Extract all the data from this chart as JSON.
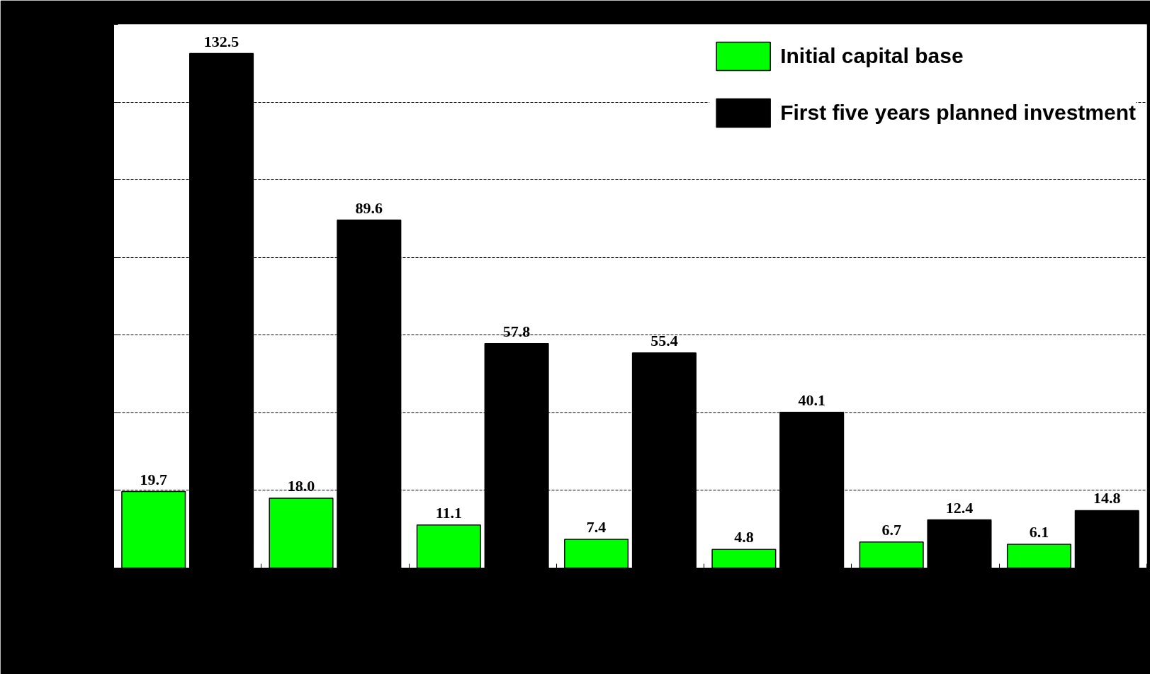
{
  "chart_data": {
    "type": "bar",
    "categories": [
      null,
      null,
      null,
      null,
      null,
      null,
      null
    ],
    "series": [
      {
        "name": "Initial capital base",
        "color": "#00ff00",
        "values": [
          19.7,
          18.0,
          11.1,
          7.4,
          4.8,
          6.7,
          6.1
        ],
        "value_labels": [
          "19.7",
          "18.0",
          "11.1",
          "7.4",
          "4.8",
          "6.7",
          "6.1"
        ]
      },
      {
        "name": "First five years planned investment",
        "color": "#000000",
        "values": [
          132.5,
          89.6,
          57.8,
          55.4,
          40.1,
          12.4,
          14.8
        ],
        "value_labels": [
          "132.5",
          "89.6",
          "57.8",
          "55.4",
          "40.1",
          "12.4",
          "14.8"
        ]
      }
    ],
    "ylim": [
      0,
      140
    ],
    "yticks": [
      {
        "value": 0,
        "label": null
      },
      {
        "value": 20,
        "label": null
      },
      {
        "value": 40,
        "label": null
      },
      {
        "value": 60,
        "label": null
      },
      {
        "value": 80,
        "label": null
      },
      {
        "value": 100,
        "label": null
      },
      {
        "value": 120,
        "label": null
      },
      {
        "value": 140,
        "label": null
      }
    ],
    "grid": "y",
    "legend": "top right",
    "tick_labels": false
  }
}
